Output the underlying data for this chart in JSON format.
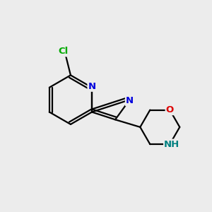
{
  "bg_color": "#ececec",
  "bond_color": "#000000",
  "N_color": "#0000dd",
  "O_color": "#dd0000",
  "Cl_color": "#00aa00",
  "NH_color": "#008080",
  "line_width": 1.6,
  "figsize": [
    3.0,
    3.0
  ],
  "dpi": 100,
  "xlim": [
    0,
    10
  ],
  "ylim": [
    0,
    10
  ]
}
